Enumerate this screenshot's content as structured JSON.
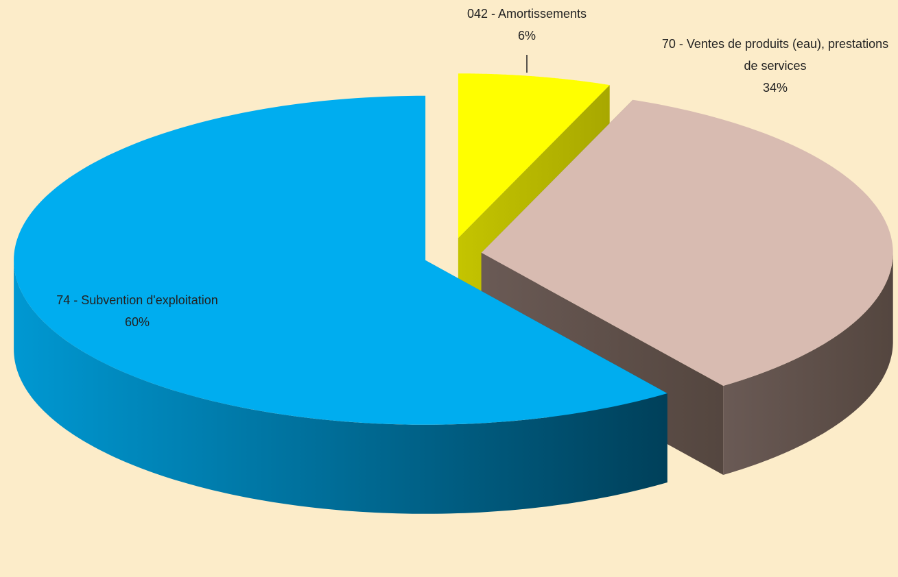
{
  "chart_data": {
    "type": "pie3d",
    "categories": [
      "042 - Amortissements",
      "70 - Ventes de produits (eau), prestations de services",
      "74 - Subvention d'exploitation"
    ],
    "values": [
      6,
      34,
      60
    ],
    "value_labels": [
      "6%",
      "34%",
      "60%"
    ],
    "colors": [
      "#ffff00",
      "#d8bbb1",
      "#00adef"
    ]
  }
}
